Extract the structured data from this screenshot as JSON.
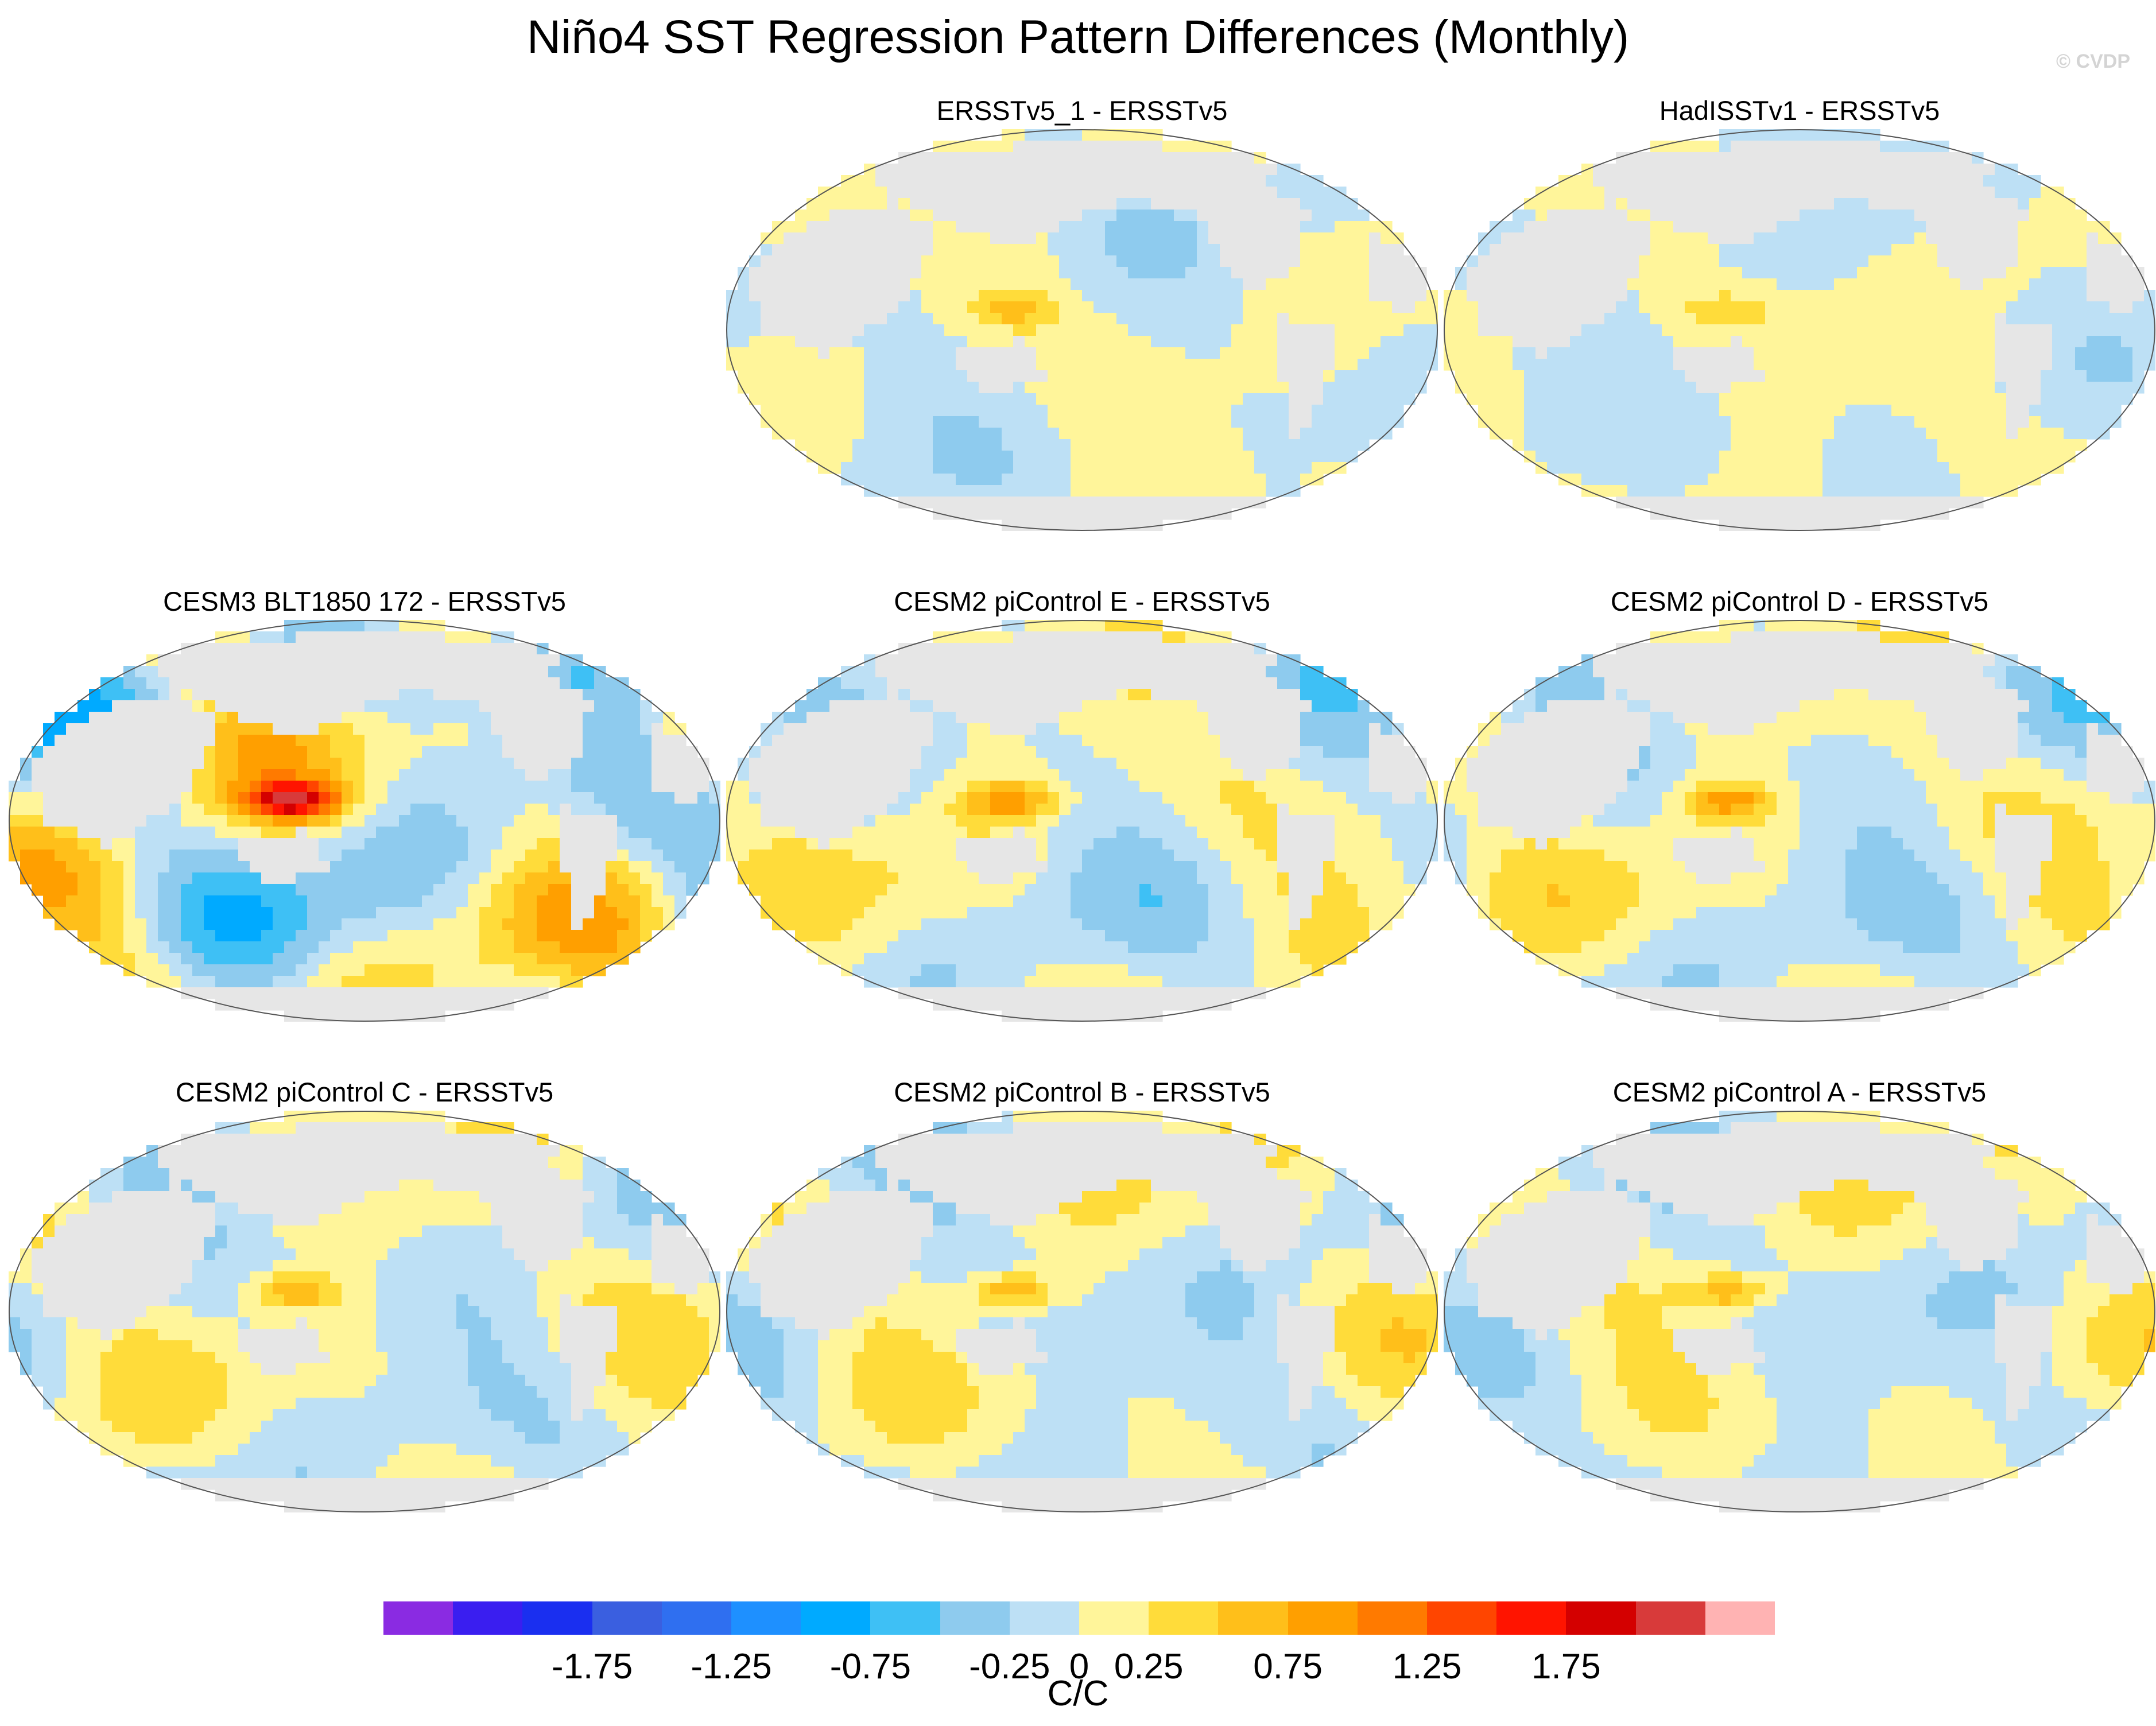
{
  "title": "Niño4 SST Regression Pattern Differences (Monthly)",
  "copyright": "© CVDP",
  "chart_data": {
    "type": "heatmap",
    "title": "Niño4 SST Regression Pattern Differences (Monthly)",
    "projection": "Robinson (global)",
    "panels": [
      {
        "id": "ersstv5_1",
        "title": "ERSSTv5_1 - ERSSTv5",
        "amp": 0.45
      },
      {
        "id": "hadisst",
        "title": "HadISSTv1 - ERSSTv5",
        "amp": 0.35
      },
      {
        "id": "cesm3",
        "title": "CESM3 BLT1850 172 - ERSSTv5",
        "amp": 1.35
      },
      {
        "id": "cesm2_e",
        "title": "CESM2 piControl E - ERSSTv5",
        "amp": 0.75
      },
      {
        "id": "cesm2_d",
        "title": "CESM2 piControl D - ERSSTv5",
        "amp": 0.75
      },
      {
        "id": "cesm2_c",
        "title": "CESM2 piControl C - ERSSTv5",
        "amp": 0.7
      },
      {
        "id": "cesm2_b",
        "title": "CESM2 piControl B - ERSSTv5",
        "amp": 0.7
      },
      {
        "id": "cesm2_a",
        "title": "CESM2 piControl A - ERSSTv5",
        "amp": 0.65
      }
    ],
    "colorbar": {
      "levels": [
        -2,
        -1.75,
        -1.5,
        -1.25,
        -1,
        -0.75,
        -0.5,
        -0.25,
        0,
        0.25,
        0.5,
        0.75,
        1,
        1.25,
        1.5,
        1.75,
        2
      ],
      "tick_labels": [
        "-1.75",
        "-1.25",
        "-0.75",
        "-0.25",
        "0",
        "0.25",
        "0.75",
        "1.25",
        "1.75"
      ],
      "tick_values": [
        -1.75,
        -1.25,
        -0.75,
        -0.25,
        0,
        0.25,
        0.75,
        1.25,
        1.75
      ],
      "colors": [
        "#8a2be2",
        "#3a1ef0",
        "#1a2ff0",
        "#3a5fe0",
        "#2f6ff0",
        "#1e90ff",
        "#00aaff",
        "#3ec0f5",
        "#8ecbee",
        "#bde0f5",
        "#fff59a",
        "#ffdc3a",
        "#ffbf1a",
        "#ff9f00",
        "#ff7a00",
        "#ff4500",
        "#ff1400",
        "#d40000",
        "#d83a3a",
        "#ffb3b3"
      ],
      "units": "C/C"
    },
    "land_color": "#e6e6e6"
  }
}
